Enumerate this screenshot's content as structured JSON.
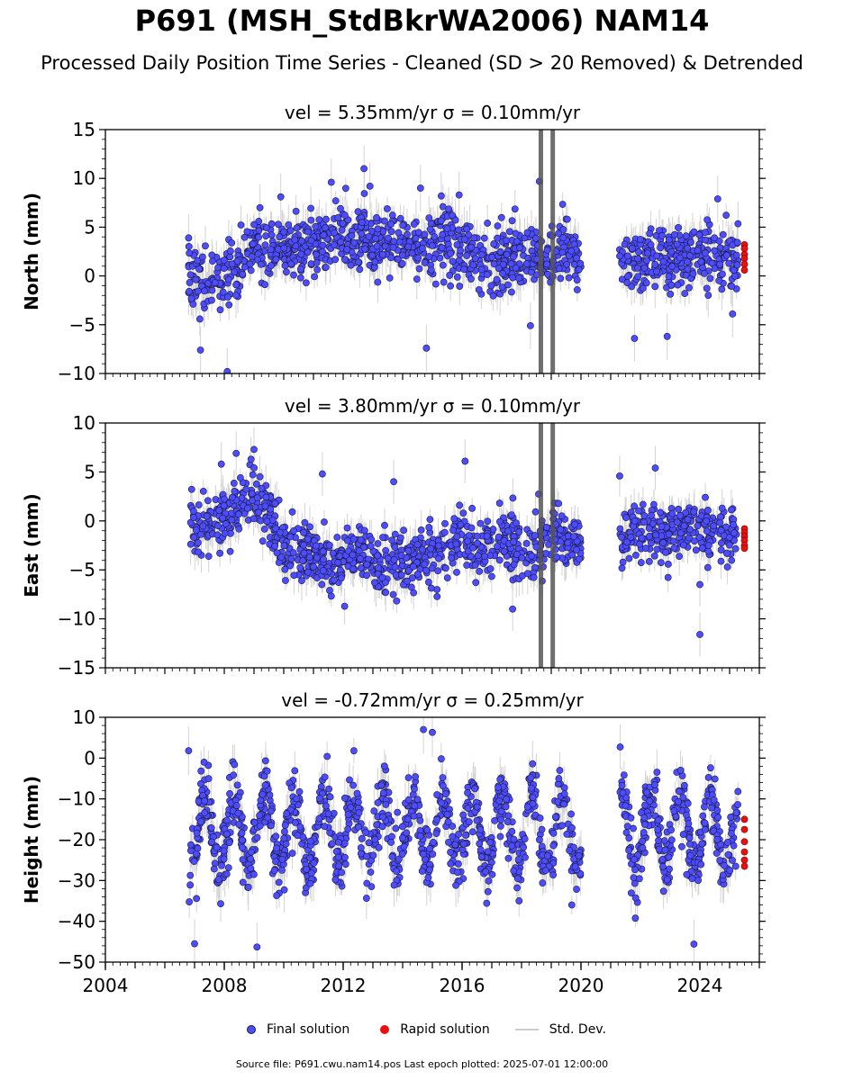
{
  "title": "P691 (MSH_StdBkrWA2006) NAM14",
  "subtitle": "Processed Daily Position Time Series - Cleaned (SD > 20 Removed) & Detrended",
  "legend": {
    "final_label": "Final solution",
    "rapid_label": "Rapid solution",
    "std_label": "Std. Dev."
  },
  "footer": "Source file: P691.cwu.nam14.pos  Last epoch plotted: 2025-07-01 12:00:00",
  "colors": {
    "final": "#4d4dff",
    "rapid": "#e81010",
    "std": "#b0b0b0",
    "axis": "#000000"
  },
  "chart_data": [
    {
      "type": "scatter",
      "panel": "north",
      "title": "vel = 5.35mm/yr   σ = 0.10mm/yr",
      "ylabel": "North (mm)",
      "xlim": [
        2004.0,
        2026.0
      ],
      "ylim": [
        -10,
        15
      ],
      "yticks": [
        -10,
        -5,
        0,
        5,
        10,
        15
      ],
      "xticks": [
        2004,
        2008,
        2012,
        2016,
        2020,
        2024
      ],
      "gap": [
        2020.0,
        2021.3
      ],
      "final_series": [
        [
          2006.8,
          -0.5
        ],
        [
          2007.0,
          0.0
        ],
        [
          2007.5,
          0.0
        ],
        [
          2008.0,
          0.5
        ],
        [
          2008.5,
          1.0
        ],
        [
          2009.0,
          3.5
        ],
        [
          2009.5,
          3.0
        ],
        [
          2010.0,
          2.5
        ],
        [
          2010.5,
          3.0
        ],
        [
          2011.0,
          3.0
        ],
        [
          2011.5,
          3.5
        ],
        [
          2012.0,
          4.0
        ],
        [
          2012.5,
          4.0
        ],
        [
          2013.0,
          3.5
        ],
        [
          2013.5,
          3.5
        ],
        [
          2014.0,
          3.5
        ],
        [
          2014.5,
          3.0
        ],
        [
          2015.0,
          3.0
        ],
        [
          2015.5,
          3.5
        ],
        [
          2016.0,
          2.5
        ],
        [
          2016.5,
          2.0
        ],
        [
          2017.0,
          1.5
        ],
        [
          2017.5,
          1.5
        ],
        [
          2018.0,
          2.0
        ],
        [
          2018.5,
          2.0
        ],
        [
          2019.0,
          2.0
        ],
        [
          2019.5,
          2.5
        ],
        [
          2020.0,
          1.5
        ],
        [
          2021.5,
          1.5
        ],
        [
          2022.0,
          1.5
        ],
        [
          2022.5,
          2.0
        ],
        [
          2023.0,
          1.5
        ],
        [
          2023.5,
          2.0
        ],
        [
          2024.0,
          2.5
        ],
        [
          2024.5,
          2.0
        ],
        [
          2025.3,
          2.0
        ]
      ],
      "scatter_sd": 1.6,
      "outliers": [
        [
          2006.8,
          3.9
        ],
        [
          2007.2,
          -7.6
        ],
        [
          2008.1,
          -9.8
        ],
        [
          2009.2,
          7.0
        ],
        [
          2009.9,
          8.1
        ],
        [
          2011.6,
          9.6
        ],
        [
          2012.7,
          11.0
        ],
        [
          2012.9,
          9.2
        ],
        [
          2014.6,
          9.0
        ],
        [
          2014.8,
          -7.4
        ],
        [
          2015.3,
          8.2
        ],
        [
          2015.9,
          8.3
        ],
        [
          2018.3,
          -5.1
        ],
        [
          2018.6,
          9.7
        ],
        [
          2021.8,
          -6.4
        ],
        [
          2022.9,
          -6.2
        ],
        [
          2024.6,
          7.9
        ],
        [
          2025.1,
          -3.9
        ]
      ],
      "spikes": [
        2018.65,
        2019.05
      ],
      "rapid": {
        "x": 2025.5,
        "values": [
          3.2,
          2.8,
          2.2,
          1.8,
          1.2,
          0.6
        ]
      }
    },
    {
      "type": "scatter",
      "panel": "east",
      "title": "vel = 3.80mm/yr   σ = 0.10mm/yr",
      "ylabel": "East (mm)",
      "xlim": [
        2004.0,
        2026.0
      ],
      "ylim": [
        -15,
        10
      ],
      "yticks": [
        -15,
        -10,
        -5,
        0,
        5,
        10
      ],
      "xticks": [
        2004,
        2008,
        2012,
        2016,
        2020,
        2024
      ],
      "gap": [
        2020.0,
        2021.3
      ],
      "final_series": [
        [
          2006.8,
          0.5
        ],
        [
          2007.0,
          -1.0
        ],
        [
          2007.5,
          0.0
        ],
        [
          2008.0,
          1.0
        ],
        [
          2008.5,
          1.5
        ],
        [
          2009.0,
          2.0
        ],
        [
          2009.5,
          1.0
        ],
        [
          2009.8,
          -2.0
        ],
        [
          2010.0,
          -3.0
        ],
        [
          2010.5,
          -3.0
        ],
        [
          2011.0,
          -3.5
        ],
        [
          2011.5,
          -4.5
        ],
        [
          2012.0,
          -4.0
        ],
        [
          2012.5,
          -3.0
        ],
        [
          2013.0,
          -4.0
        ],
        [
          2013.5,
          -4.5
        ],
        [
          2014.0,
          -4.0
        ],
        [
          2014.5,
          -3.5
        ],
        [
          2015.0,
          -3.5
        ],
        [
          2015.5,
          -2.0
        ],
        [
          2016.0,
          -1.0
        ],
        [
          2016.5,
          -4.0
        ],
        [
          2017.0,
          -2.0
        ],
        [
          2017.5,
          -1.5
        ],
        [
          2018.0,
          -4.0
        ],
        [
          2018.5,
          -3.0
        ],
        [
          2019.0,
          -1.0
        ],
        [
          2019.5,
          -2.5
        ],
        [
          2020.0,
          -2.0
        ],
        [
          2021.5,
          -1.0
        ],
        [
          2022.0,
          -1.0
        ],
        [
          2022.5,
          -1.0
        ],
        [
          2023.0,
          -1.5
        ],
        [
          2023.5,
          -0.5
        ],
        [
          2024.0,
          -1.0
        ],
        [
          2024.5,
          -1.5
        ],
        [
          2025.3,
          -1.5
        ]
      ],
      "scatter_sd": 1.5,
      "outliers": [
        [
          2007.9,
          5.8
        ],
        [
          2008.4,
          6.9
        ],
        [
          2008.9,
          6.3
        ],
        [
          2009.0,
          7.3
        ],
        [
          2011.3,
          4.8
        ],
        [
          2013.7,
          4.0
        ],
        [
          2016.1,
          6.1
        ],
        [
          2017.7,
          -9.0
        ],
        [
          2022.5,
          5.4
        ],
        [
          2024.0,
          -11.6
        ],
        [
          2024.0,
          -6.5
        ]
      ],
      "spikes": [
        2018.65,
        2019.05
      ],
      "rapid": {
        "x": 2025.5,
        "values": [
          -0.8,
          -1.2,
          -1.6,
          -2.0,
          -2.5,
          -2.8
        ]
      }
    },
    {
      "type": "scatter",
      "panel": "height",
      "title": "vel = -0.72mm/yr   σ = 0.25mm/yr",
      "ylabel": "Height (mm)",
      "xlim": [
        2004.0,
        2026.0
      ],
      "ylim": [
        -50,
        10
      ],
      "yticks": [
        -50,
        -40,
        -30,
        -20,
        -10,
        0,
        10
      ],
      "xticks": [
        2004,
        2008,
        2012,
        2016,
        2020,
        2024
      ],
      "xticklabels": [
        "2004",
        "2008",
        "2012",
        "2016",
        "2020",
        "2024"
      ],
      "gap": [
        2020.0,
        2021.3
      ],
      "seasonal": {
        "mean": -18,
        "amplitude": 9,
        "period_years": 1.0
      },
      "final_series": [
        [
          2006.8,
          -18
        ],
        [
          2025.3,
          -18
        ]
      ],
      "scatter_sd": 4.0,
      "outliers": [
        [
          2006.8,
          1.8
        ],
        [
          2007.0,
          -45.5
        ],
        [
          2009.1,
          -46.3
        ],
        [
          2014.7,
          7.0
        ],
        [
          2015.0,
          6.3
        ],
        [
          2023.8,
          -45.6
        ]
      ],
      "spikes": [],
      "rapid": {
        "x": 2025.5,
        "values": [
          -15.0,
          -17.5,
          -20.5,
          -23.0,
          -25.0,
          -26.5
        ]
      }
    }
  ]
}
